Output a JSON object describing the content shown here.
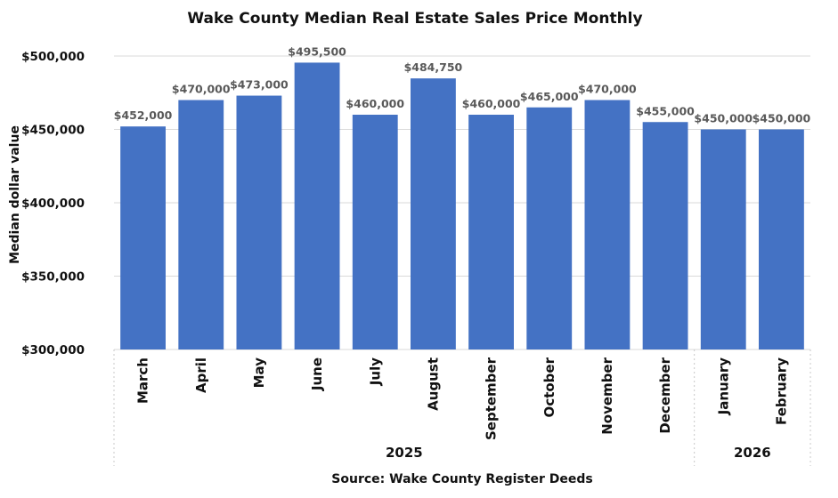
{
  "chart_data": {
    "type": "bar",
    "title": "Wake County Median Real Estate Sales Price Monthly",
    "ylabel": "Median dollar value",
    "xlabel": "",
    "source": "Source: Wake County Register Deeds",
    "ylim": [
      300000,
      500000
    ],
    "yticks": [
      300000,
      350000,
      400000,
      450000,
      500000
    ],
    "ytick_labels": [
      "$300,000",
      "$350,000",
      "$400,000",
      "$450,000",
      "$500,000"
    ],
    "categories": [
      "March",
      "April",
      "May",
      "June",
      "July",
      "August",
      "September",
      "October",
      "November",
      "December",
      "January",
      "February"
    ],
    "values": [
      452000,
      470000,
      473000,
      495500,
      460000,
      484750,
      460000,
      465000,
      470000,
      455000,
      450000,
      450000
    ],
    "data_labels": [
      "$452,000",
      "$470,000",
      "$473,000",
      "$495,500",
      "$460,000",
      "$484,750",
      "$460,000",
      "$465,000",
      "$470,000",
      "$455,000",
      "$450,000",
      "$450,000"
    ],
    "groups": [
      {
        "label": "2025",
        "count": 10
      },
      {
        "label": "2026",
        "count": 2
      }
    ],
    "bar_color": "#4472c4",
    "grid": true
  }
}
